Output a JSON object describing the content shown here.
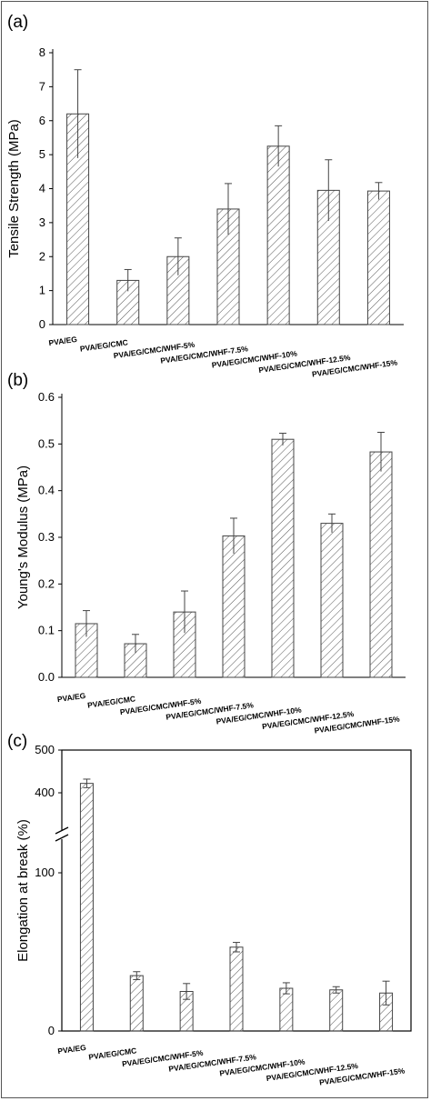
{
  "chart_data": [
    {
      "panel": "(a)",
      "type": "bar",
      "ylabel": "Tensile Strength (MPa)",
      "ylim": [
        0,
        8
      ],
      "yticks": [
        "0",
        "1",
        "2",
        "3",
        "4",
        "5",
        "6",
        "7",
        "8"
      ],
      "categories": [
        "PVA/EG",
        "PVA/EG/CMC",
        "PVA/EG/CMC/WHF-5%",
        "PVA/EG/CMC/WHF-7.5%",
        "PVA/EG/CMC/WHF-10%",
        "PVA/EG/CMC/WHF-12.5%",
        "PVA/EG/CMC/WHF-15%"
      ],
      "values": [
        6.2,
        1.3,
        2.0,
        3.4,
        5.25,
        3.95,
        3.93
      ],
      "errors": [
        1.3,
        0.32,
        0.55,
        0.75,
        0.6,
        0.9,
        0.25
      ],
      "grid": false
    },
    {
      "panel": "(b)",
      "type": "bar",
      "ylabel": "Young's Modulus (MPa)",
      "ylim": [
        0,
        0.6
      ],
      "yticks": [
        "0.0",
        "0.1",
        "0.2",
        "0.3",
        "0.4",
        "0.5",
        "0.6"
      ],
      "categories": [
        "PVA/EG",
        "PVA/EG/CMC",
        "PVA/EG/CMC/WHF-5%",
        "PVA/EG/CMC/WHF-7.5%",
        "PVA/EG/CMC/WHF-10%",
        "PVA/EG/CMC/WHF-12.5%",
        "PVA/EG/CMC/WHF-15%"
      ],
      "values": [
        0.115,
        0.072,
        0.14,
        0.303,
        0.51,
        0.33,
        0.483
      ],
      "errors": [
        0.028,
        0.02,
        0.045,
        0.038,
        0.013,
        0.02,
        0.042
      ],
      "grid": false
    },
    {
      "panel": "(c)",
      "type": "bar",
      "ylabel": "Elongation at break (%)",
      "axis_break": true,
      "yticks": [
        "0",
        "100",
        "400",
        "500"
      ],
      "categories": [
        "PVA/EG",
        "PVA/EG/CMC",
        "PVA/EG/CMC/WHF-5%",
        "PVA/EG/CMC/WHF-7.5%",
        "PVA/EG/CMC/WHF-10%",
        "PVA/EG/CMC/WHF-12.5%",
        "PVA/EG/CMC/WHF-15%"
      ],
      "values": [
        422,
        35,
        25,
        53,
        27,
        26,
        24
      ],
      "errors": [
        10,
        2.5,
        5,
        3,
        3.5,
        2,
        7.5
      ],
      "grid": false
    }
  ],
  "colors": {
    "bar_fill": "#ffffff",
    "bar_hatch": "#555555",
    "axis": "#000000",
    "frame": "#555555"
  }
}
